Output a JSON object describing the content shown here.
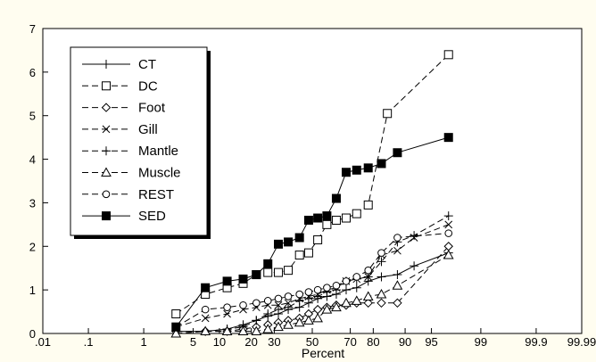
{
  "chart_data": {
    "type": "line",
    "xlabel": "Percent",
    "ylabel": "",
    "x_scale": "normal-probability",
    "xlim": [
      0.01,
      99.99
    ],
    "ylim": [
      0,
      7
    ],
    "x_ticks": [
      {
        "value": 0.01,
        "label": ".01"
      },
      {
        "value": 0.1,
        "label": ".1"
      },
      {
        "value": 1,
        "label": "1"
      },
      {
        "value": 5,
        "label": "5"
      },
      {
        "value": 10,
        "label": "10"
      },
      {
        "value": 20,
        "label": "20"
      },
      {
        "value": 30,
        "label": "30"
      },
      {
        "value": 50,
        "label": "50"
      },
      {
        "value": 70,
        "label": "70"
      },
      {
        "value": 80,
        "label": "80"
      },
      {
        "value": 90,
        "label": "90"
      },
      {
        "value": 95,
        "label": "95"
      },
      {
        "value": 99,
        "label": "99"
      },
      {
        "value": 99.9,
        "label": "99.9"
      },
      {
        "value": 99.99,
        "label": "99.99"
      }
    ],
    "y_ticks": [
      0,
      1,
      2,
      3,
      4,
      5,
      6,
      7
    ],
    "grid": false,
    "legend_position": "top-left",
    "series": [
      {
        "name": "CT",
        "marker": "plus",
        "line": "solid",
        "points": [
          [
            3,
            0.05
          ],
          [
            7,
            0.05
          ],
          [
            12,
            0.1
          ],
          [
            17,
            0.2
          ],
          [
            22,
            0.3
          ],
          [
            27,
            0.4
          ],
          [
            32,
            0.45
          ],
          [
            37,
            0.55
          ],
          [
            43,
            0.6
          ],
          [
            48,
            0.7
          ],
          [
            53,
            0.8
          ],
          [
            58,
            0.85
          ],
          [
            63,
            0.9
          ],
          [
            68,
            1.0
          ],
          [
            73,
            1.05
          ],
          [
            78,
            1.2
          ],
          [
            83,
            1.3
          ],
          [
            88,
            1.35
          ],
          [
            92,
            1.55
          ],
          [
            97,
            1.85
          ]
        ]
      },
      {
        "name": "DC",
        "marker": "square-open",
        "line": "dashed",
        "points": [
          [
            3,
            0.45
          ],
          [
            7,
            0.9
          ],
          [
            12,
            1.05
          ],
          [
            17,
            1.15
          ],
          [
            22,
            1.35
          ],
          [
            27,
            1.4
          ],
          [
            32,
            1.4
          ],
          [
            37,
            1.45
          ],
          [
            43,
            1.8
          ],
          [
            48,
            1.85
          ],
          [
            53,
            2.15
          ],
          [
            58,
            2.5
          ],
          [
            63,
            2.6
          ],
          [
            68,
            2.65
          ],
          [
            73,
            2.75
          ],
          [
            78,
            2.95
          ],
          [
            85,
            5.05
          ],
          [
            97,
            6.4
          ]
        ]
      },
      {
        "name": "Foot",
        "marker": "diamond-open",
        "line": "dashed",
        "points": [
          [
            3,
            0.05
          ],
          [
            7,
            0.05
          ],
          [
            12,
            0.05
          ],
          [
            17,
            0.1
          ],
          [
            22,
            0.15
          ],
          [
            27,
            0.2
          ],
          [
            32,
            0.25
          ],
          [
            37,
            0.3
          ],
          [
            43,
            0.35
          ],
          [
            48,
            0.45
          ],
          [
            53,
            0.55
          ],
          [
            58,
            0.6
          ],
          [
            63,
            0.65
          ],
          [
            68,
            0.65
          ],
          [
            73,
            0.7
          ],
          [
            78,
            0.7
          ],
          [
            83,
            0.7
          ],
          [
            88,
            0.7
          ],
          [
            97,
            2.0
          ]
        ]
      },
      {
        "name": "Gill",
        "marker": "x",
        "line": "dashed",
        "points": [
          [
            3,
            0.15
          ],
          [
            7,
            0.35
          ],
          [
            12,
            0.45
          ],
          [
            17,
            0.55
          ],
          [
            22,
            0.6
          ],
          [
            27,
            0.65
          ],
          [
            32,
            0.65
          ],
          [
            37,
            0.7
          ],
          [
            43,
            0.8
          ],
          [
            48,
            0.85
          ],
          [
            53,
            0.9
          ],
          [
            58,
            1.0
          ],
          [
            63,
            1.05
          ],
          [
            68,
            1.2
          ],
          [
            73,
            1.25
          ],
          [
            78,
            1.3
          ],
          [
            83,
            1.8
          ],
          [
            88,
            1.9
          ],
          [
            92,
            2.2
          ],
          [
            97,
            2.5
          ]
        ]
      },
      {
        "name": "Mantle",
        "marker": "plus",
        "line": "dashed",
        "points": [
          [
            3,
            0.05
          ],
          [
            7,
            0.05
          ],
          [
            12,
            0.1
          ],
          [
            17,
            0.15
          ],
          [
            22,
            0.3
          ],
          [
            27,
            0.45
          ],
          [
            32,
            0.55
          ],
          [
            37,
            0.6
          ],
          [
            43,
            0.75
          ],
          [
            48,
            0.8
          ],
          [
            53,
            0.85
          ],
          [
            58,
            0.95
          ],
          [
            63,
            1.0
          ],
          [
            68,
            1.2
          ],
          [
            73,
            1.25
          ],
          [
            78,
            1.3
          ],
          [
            83,
            1.65
          ],
          [
            88,
            2.1
          ],
          [
            92,
            2.25
          ],
          [
            97,
            2.7
          ]
        ]
      },
      {
        "name": "Muscle",
        "marker": "triangle-open",
        "line": "dashed",
        "points": [
          [
            3,
            0.0
          ],
          [
            7,
            0.05
          ],
          [
            12,
            0.05
          ],
          [
            17,
            0.05
          ],
          [
            22,
            0.05
          ],
          [
            27,
            0.1
          ],
          [
            32,
            0.15
          ],
          [
            37,
            0.2
          ],
          [
            43,
            0.25
          ],
          [
            48,
            0.3
          ],
          [
            53,
            0.35
          ],
          [
            58,
            0.55
          ],
          [
            63,
            0.6
          ],
          [
            68,
            0.7
          ],
          [
            73,
            0.75
          ],
          [
            78,
            0.85
          ],
          [
            83,
            0.9
          ],
          [
            88,
            1.1
          ],
          [
            97,
            1.8
          ]
        ]
      },
      {
        "name": "REST",
        "marker": "circle-open",
        "line": "dashed",
        "points": [
          [
            3,
            0.15
          ],
          [
            7,
            0.55
          ],
          [
            12,
            0.6
          ],
          [
            17,
            0.65
          ],
          [
            22,
            0.7
          ],
          [
            27,
            0.75
          ],
          [
            32,
            0.8
          ],
          [
            37,
            0.85
          ],
          [
            43,
            0.9
          ],
          [
            48,
            0.95
          ],
          [
            53,
            1.0
          ],
          [
            58,
            1.05
          ],
          [
            63,
            1.1
          ],
          [
            68,
            1.2
          ],
          [
            73,
            1.3
          ],
          [
            78,
            1.45
          ],
          [
            83,
            1.85
          ],
          [
            88,
            2.2
          ],
          [
            97,
            2.3
          ]
        ]
      },
      {
        "name": "SED",
        "marker": "square-filled",
        "line": "solid",
        "points": [
          [
            3,
            0.15
          ],
          [
            7,
            1.05
          ],
          [
            12,
            1.2
          ],
          [
            17,
            1.25
          ],
          [
            22,
            1.35
          ],
          [
            27,
            1.6
          ],
          [
            32,
            2.05
          ],
          [
            37,
            2.1
          ],
          [
            43,
            2.2
          ],
          [
            48,
            2.6
          ],
          [
            53,
            2.65
          ],
          [
            58,
            2.7
          ],
          [
            63,
            3.1
          ],
          [
            68,
            3.7
          ],
          [
            73,
            3.75
          ],
          [
            78,
            3.8
          ],
          [
            83,
            3.9
          ],
          [
            88,
            4.15
          ],
          [
            97,
            4.5
          ]
        ]
      }
    ]
  }
}
